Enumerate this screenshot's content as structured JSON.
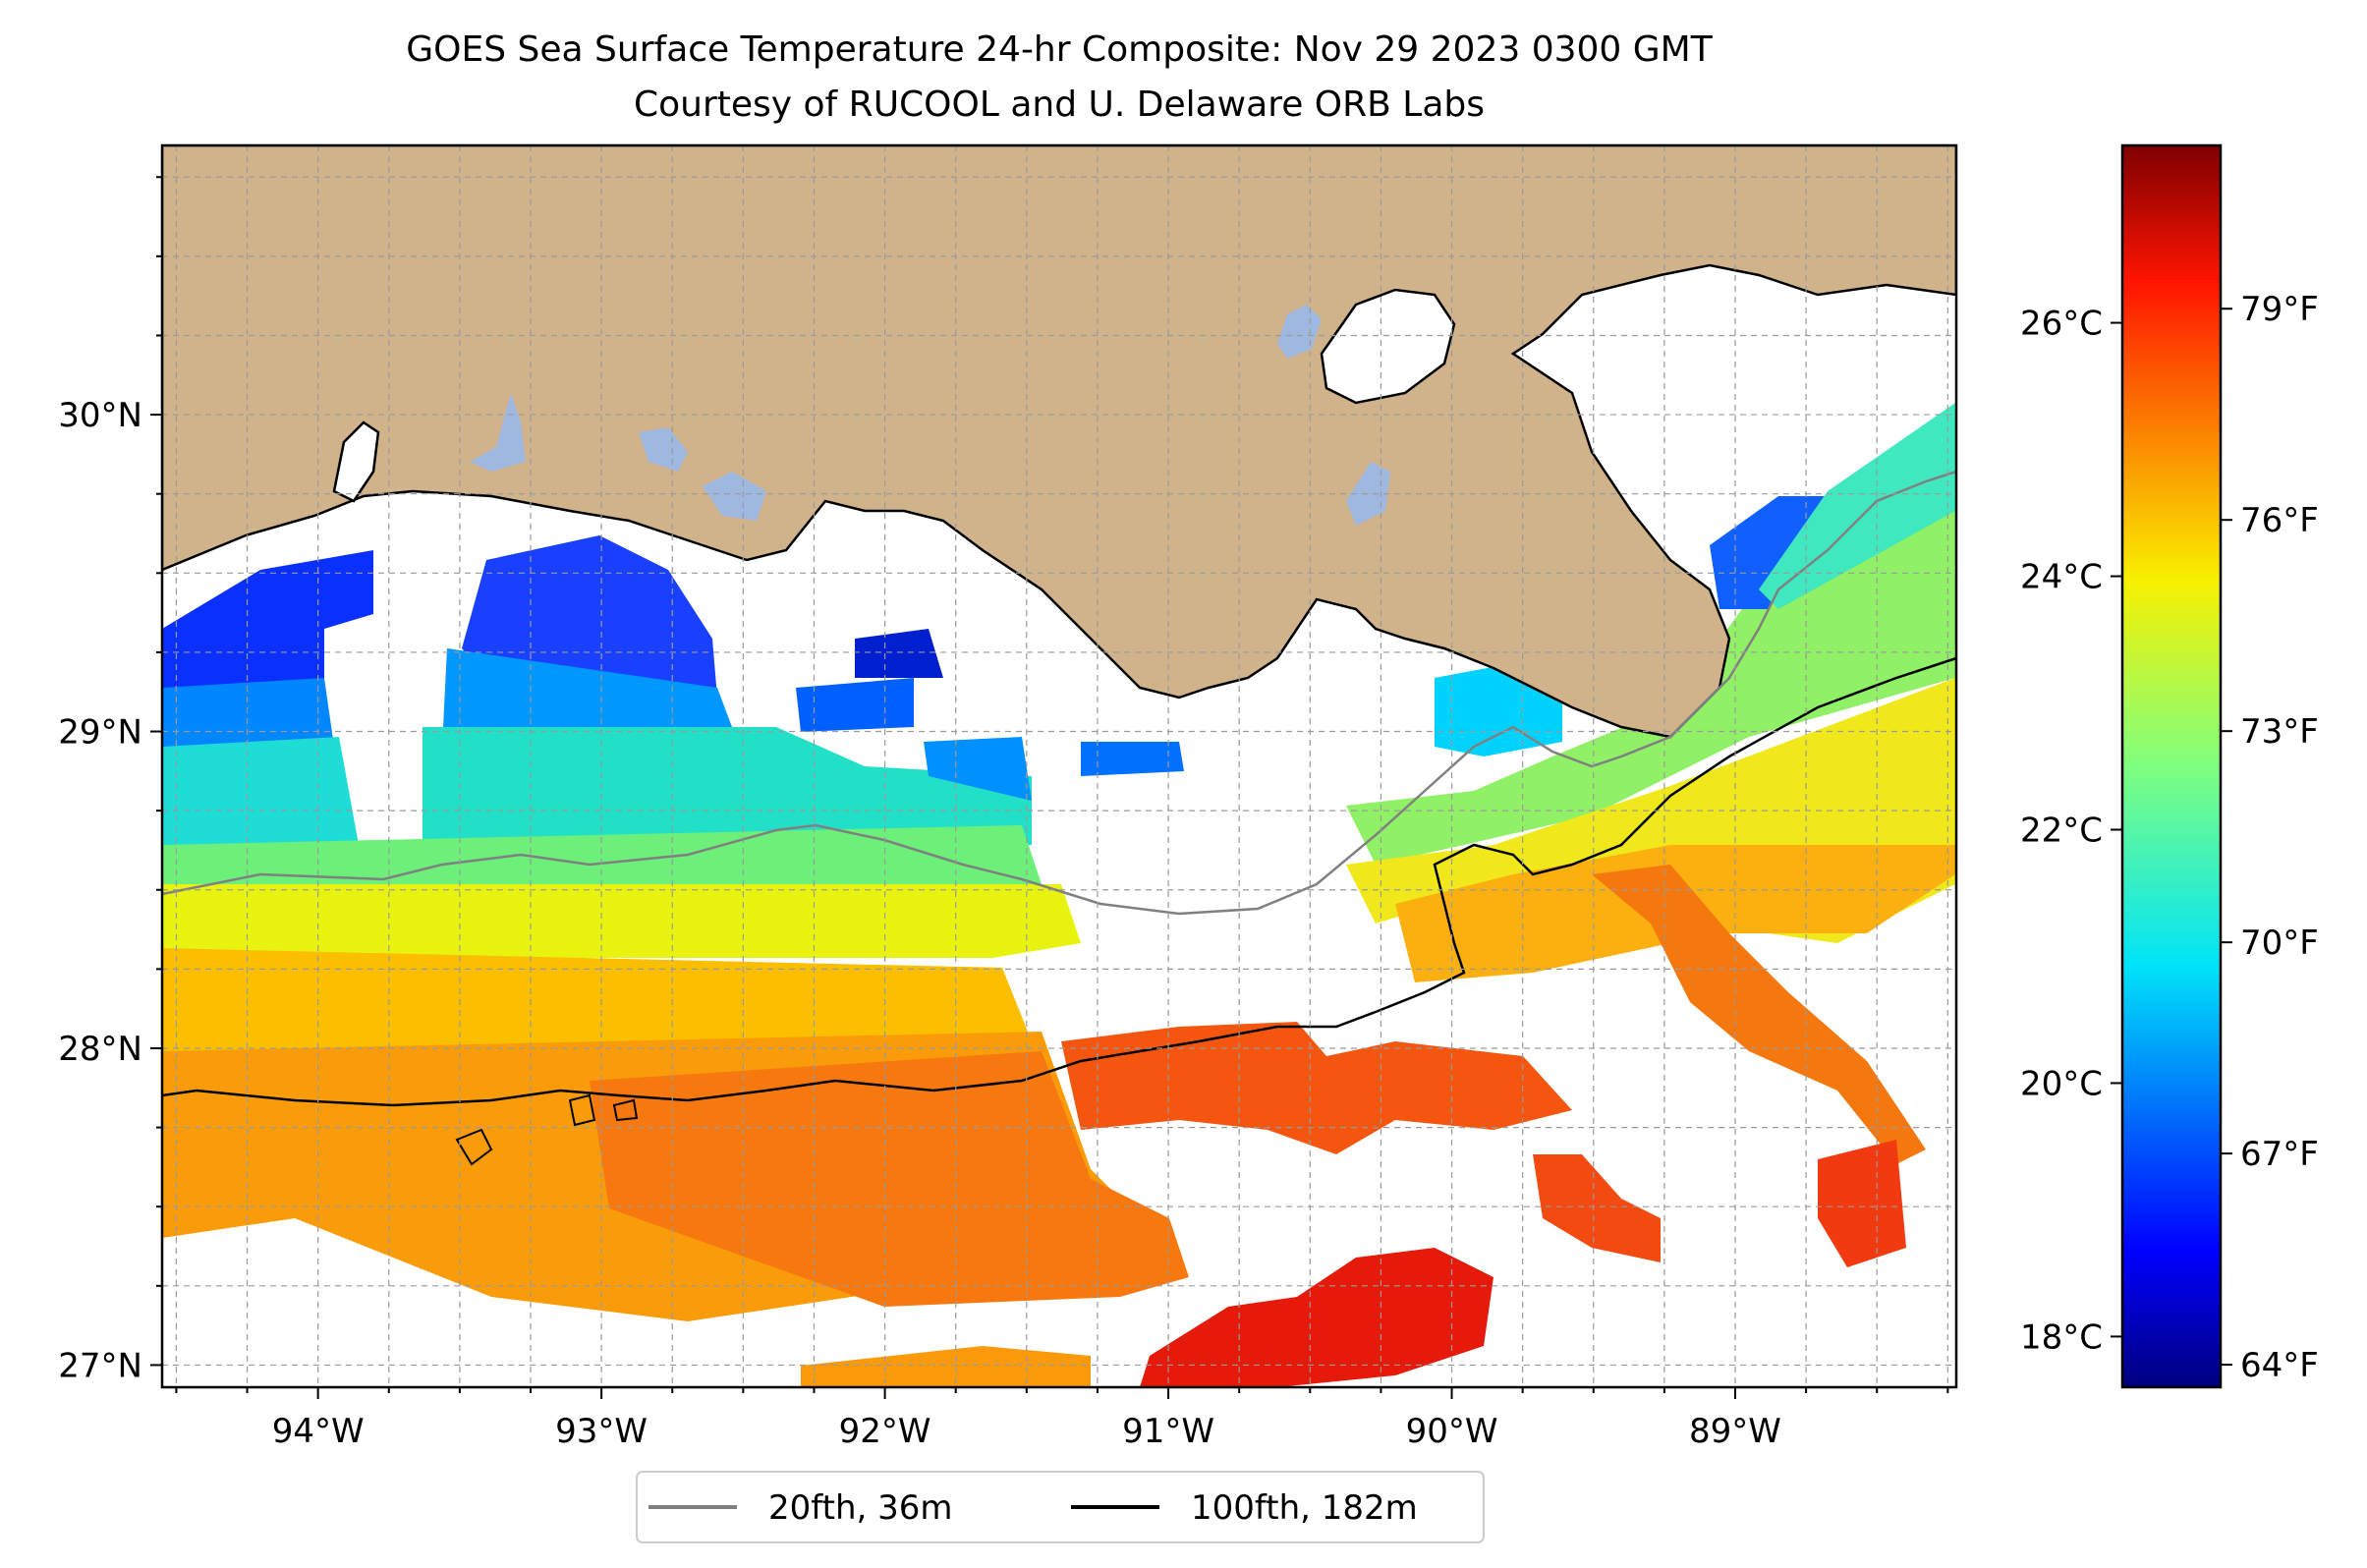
{
  "title": {
    "line1": "GOES Sea Surface Temperature 24-hr Composite: Nov 29 2023 0300 GMT",
    "line2": "Courtesy of RUCOOL and U. Delaware ORB Labs"
  },
  "map": {
    "lon_range": [
      -94.55,
      -88.22
    ],
    "lat_range": [
      26.93,
      30.85
    ],
    "lon_ticks": [
      {
        "value": -94,
        "label": "94°W"
      },
      {
        "value": -93,
        "label": "93°W"
      },
      {
        "value": -92,
        "label": "92°W"
      },
      {
        "value": -91,
        "label": "91°W"
      },
      {
        "value": -90,
        "label": "90°W"
      },
      {
        "value": -89,
        "label": "89°W"
      }
    ],
    "lat_ticks": [
      {
        "value": 27,
        "label": "27°N"
      },
      {
        "value": 28,
        "label": "28°N"
      },
      {
        "value": 29,
        "label": "29°N"
      },
      {
        "value": 30,
        "label": "30°N"
      }
    ],
    "grid": true,
    "land_color": "#d0b38b",
    "lake_color": "#9fb8e0",
    "ocean_color": "#ffffff"
  },
  "legend": {
    "placement": "bottom-center",
    "entries": [
      {
        "label": "20fth, 36m",
        "color": "#808080"
      },
      {
        "label": "100fth, 182m",
        "color": "#000000"
      }
    ]
  },
  "colorbar": {
    "colormap": "jet",
    "range_c": [
      17.6,
      27.4
    ],
    "celsius_ticks": [
      {
        "value": 18,
        "label": "18°C"
      },
      {
        "value": 20,
        "label": "20°C"
      },
      {
        "value": 22,
        "label": "22°C"
      },
      {
        "value": 24,
        "label": "24°C"
      },
      {
        "value": 26,
        "label": "26°C"
      }
    ],
    "fahrenheit_ticks": [
      {
        "value": 64,
        "label": "64°F"
      },
      {
        "value": 67,
        "label": "67°F"
      },
      {
        "value": 70,
        "label": "70°F"
      },
      {
        "value": 73,
        "label": "73°F"
      },
      {
        "value": 76,
        "label": "76°F"
      },
      {
        "value": 79,
        "label": "79°F"
      }
    ]
  }
}
